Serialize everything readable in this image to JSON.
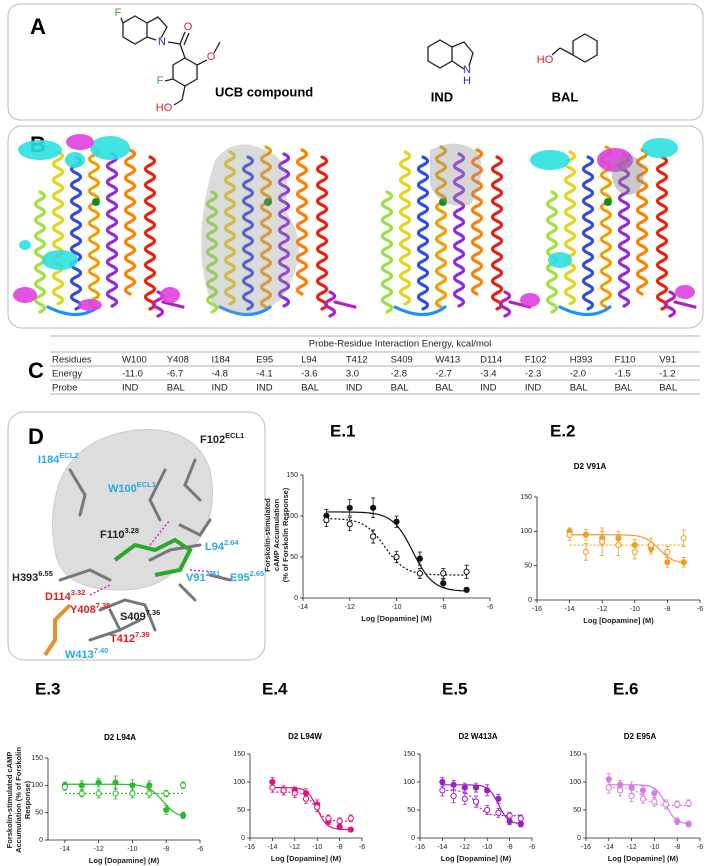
{
  "panel_a": {
    "label": "A",
    "molecules": [
      {
        "name": "UCB compound",
        "atoms": [
          "F",
          "N",
          "O",
          "O",
          "F",
          "HO"
        ]
      },
      {
        "name": "IND",
        "atoms": [
          "N",
          "H"
        ]
      },
      {
        "name": "BAL",
        "atoms": [
          "HO"
        ]
      }
    ]
  },
  "panel_b": {
    "label": "B"
  },
  "panel_c": {
    "label": "C",
    "table": {
      "title": "Probe-Residue Interaction Energy, kcal/mol",
      "rows": [
        [
          "Residues",
          "W100",
          "Y408",
          "I184",
          "E95",
          "L94",
          "T412",
          "S409",
          "W413",
          "D114",
          "F102",
          "H393",
          "F110",
          "V91"
        ],
        [
          "Energy",
          "-11.0",
          "-6.7",
          "-4.8",
          "-4.1",
          "-3.6",
          "3.0",
          "-2.8",
          "-2.7",
          "-3.4",
          "-2.3",
          "-2.0",
          "-1.5",
          "-1.2"
        ],
        [
          "Probe",
          "IND",
          "BAL",
          "IND",
          "IND",
          "BAL",
          "IND",
          "BAL",
          "BAL",
          "IND",
          "IND",
          "BAL",
          "BAL",
          "BAL"
        ]
      ]
    }
  },
  "panel_d": {
    "label": "D",
    "residues": [
      {
        "text": "I184",
        "sup": "ECL2",
        "color": "#29a8e0"
      },
      {
        "text": "W100",
        "sup": "ECL1",
        "color": "#29a8e0"
      },
      {
        "text": "F102",
        "sup": "ECL1",
        "color": "#222222"
      },
      {
        "text": "F110",
        "sup": "3.28",
        "color": "#222222"
      },
      {
        "text": "L94",
        "sup": "2.64",
        "color": "#29a8e0"
      },
      {
        "text": "H393",
        "sup": "6.55",
        "color": "#222222"
      },
      {
        "text": "V91",
        "sup": "2.61",
        "color": "#29a8e0"
      },
      {
        "text": "E95",
        "sup": "2.65",
        "color": "#29a8e0"
      },
      {
        "text": "D114",
        "sup": "3.32",
        "color": "#d62020"
      },
      {
        "text": "Y408",
        "sup": "7.35",
        "color": "#d62020"
      },
      {
        "text": "S409",
        "sup": "7.36",
        "color": "#222222"
      },
      {
        "text": "T412",
        "sup": "7.39",
        "color": "#d62020"
      },
      {
        "text": "W413",
        "sup": "7.40",
        "color": "#29a8e0"
      }
    ]
  },
  "chart_data": [
    {
      "type": "scatter",
      "title": "E.1",
      "x_label": "Log [Dopamine] (M)",
      "y_label": [
        "Forskolin-stimulated",
        "cAMP Accumulation",
        "(% of Forskolin Response)"
      ],
      "x": [
        -13,
        -12,
        -11,
        -10,
        -9,
        -8,
        -7
      ],
      "xlim": [
        -14,
        -6
      ],
      "ylim": [
        0,
        150
      ],
      "xticks": [
        -14,
        -12,
        -10,
        -8,
        -6
      ],
      "yticks": [
        0,
        50,
        100,
        150
      ],
      "series": [
        {
          "color": "#111111",
          "marker": "filled",
          "line_style": "solid",
          "values": [
            100,
            110,
            110,
            93,
            48,
            18,
            10
          ],
          "errors": [
            8,
            10,
            12,
            7,
            8,
            5,
            3
          ],
          "fit": {
            "top": 105,
            "bottom": 8,
            "log_ec50": -9.3
          }
        },
        {
          "color": "#111111",
          "marker": "open",
          "line_style": "dashed",
          "values": [
            95,
            90,
            75,
            50,
            30,
            30,
            32
          ],
          "errors": [
            8,
            8,
            8,
            7,
            6,
            6,
            8
          ],
          "fit": {
            "top": 97,
            "bottom": 28,
            "log_ec50": -10.5
          }
        }
      ]
    },
    {
      "type": "scatter",
      "title": "E.2",
      "subtitle": "D2 V91A",
      "x_label": "Log [Dopamine] (M)",
      "x": [
        -14,
        -13,
        -12,
        -11,
        -10,
        -9,
        -8,
        -7
      ],
      "xlim": [
        -16,
        -6
      ],
      "ylim": [
        0,
        150
      ],
      "xticks": [
        -16,
        -14,
        -12,
        -10,
        -8,
        -6
      ],
      "yticks": [
        0,
        50,
        100,
        150
      ],
      "series": [
        {
          "color": "#f39c1f",
          "marker": "filled",
          "line_style": "solid",
          "values": [
            100,
            95,
            90,
            90,
            80,
            75,
            55,
            55
          ],
          "errors": [
            5,
            8,
            10,
            10,
            8,
            8,
            7,
            7
          ],
          "fit": {
            "top": 95,
            "bottom": 53,
            "log_ec50": -8.5
          }
        },
        {
          "color": "#f39c1f",
          "marker": "open",
          "line_style": "dashed",
          "values": [
            95,
            70,
            85,
            80,
            70,
            80,
            70,
            90
          ],
          "errors": [
            8,
            12,
            20,
            15,
            10,
            10,
            8,
            12
          ],
          "fit": {
            "top": 80,
            "bottom": 80,
            "log_ec50": -10
          }
        }
      ]
    },
    {
      "type": "scatter",
      "title": "E.3",
      "subtitle": "D2 L94A",
      "x_label": "Log [Dopamine] (M)",
      "y_label": [
        "Forskolin-stimulated cAMP",
        "Accumulation (% of Forskolin",
        "Response)"
      ],
      "x": [
        -14,
        -13,
        -12,
        -11,
        -10,
        -9,
        -8,
        -7
      ],
      "xlim": [
        -15,
        -6
      ],
      "ylim": [
        0,
        150
      ],
      "xticks": [
        -14,
        -12,
        -10,
        -8,
        -6
      ],
      "yticks": [
        0,
        50,
        100,
        150
      ],
      "series": [
        {
          "color": "#2db82d",
          "marker": "filled",
          "line_style": "solid",
          "values": [
            100,
            100,
            105,
            105,
            100,
            100,
            55,
            45
          ],
          "errors": [
            6,
            8,
            8,
            12,
            10,
            8,
            8,
            6
          ],
          "fit": {
            "top": 102,
            "bottom": 40,
            "log_ec50": -8.2
          }
        },
        {
          "color": "#2db82d",
          "marker": "open",
          "line_style": "dashed",
          "values": [
            97,
            85,
            85,
            85,
            85,
            85,
            85,
            100
          ],
          "errors": [
            6,
            6,
            8,
            10,
            8,
            8,
            6,
            6
          ],
          "fit": {
            "top": 85,
            "bottom": 85,
            "log_ec50": -10
          }
        }
      ]
    },
    {
      "type": "scatter",
      "title": "E.4",
      "subtitle": "D2 L94W",
      "x_label": "Log [Dopamine] (M)",
      "x": [
        -14,
        -13,
        -12,
        -11,
        -10,
        -9,
        -8,
        -7
      ],
      "xlim": [
        -16,
        -6
      ],
      "ylim": [
        0,
        150
      ],
      "xticks": [
        -16,
        -14,
        -12,
        -10,
        -8,
        -6
      ],
      "yticks": [
        0,
        50,
        100,
        150
      ],
      "series": [
        {
          "color": "#e0157e",
          "marker": "filled",
          "line_style": "solid",
          "values": [
            100,
            85,
            85,
            80,
            60,
            30,
            20,
            15
          ],
          "errors": [
            8,
            8,
            6,
            8,
            8,
            6,
            5,
            4
          ],
          "fit": {
            "top": 90,
            "bottom": 15,
            "log_ec50": -10
          }
        },
        {
          "color": "#e0157e",
          "marker": "open",
          "line_style": "dashed",
          "values": [
            90,
            85,
            80,
            70,
            55,
            35,
            30,
            35
          ],
          "errors": [
            8,
            8,
            8,
            8,
            8,
            6,
            6,
            6
          ],
          "fit": {
            "top": 82,
            "bottom": 30,
            "log_ec50": -10.2
          }
        }
      ]
    },
    {
      "type": "scatter",
      "title": "E.5",
      "subtitle": "D2 W413A",
      "x_label": "Log [Dopamine] (M)",
      "x": [
        -14,
        -13,
        -12,
        -11,
        -10,
        -9,
        -8,
        -7
      ],
      "xlim": [
        -16,
        -6
      ],
      "ylim": [
        0,
        150
      ],
      "xticks": [
        -16,
        -14,
        -12,
        -10,
        -8,
        -6
      ],
      "yticks": [
        0,
        50,
        100,
        150
      ],
      "series": [
        {
          "color": "#9b1fc9",
          "marker": "filled",
          "line_style": "solid",
          "values": [
            100,
            95,
            90,
            90,
            85,
            70,
            30,
            25
          ],
          "errors": [
            8,
            8,
            8,
            8,
            10,
            8,
            6,
            5
          ],
          "fit": {
            "top": 95,
            "bottom": 25,
            "log_ec50": -9
          }
        },
        {
          "color": "#9b1fc9",
          "marker": "open",
          "line_style": "dashed",
          "values": [
            85,
            75,
            70,
            65,
            50,
            45,
            40,
            35
          ],
          "errors": [
            10,
            12,
            10,
            10,
            8,
            8,
            6,
            6
          ],
          "fit": {
            "top": 85,
            "bottom": 40,
            "log_ec50": -11
          }
        }
      ]
    },
    {
      "type": "scatter",
      "title": "E.6",
      "subtitle": "D2 E95A",
      "x_label": "Log [Dopamine] (M)",
      "x": [
        -14,
        -13,
        -12,
        -11,
        -10,
        -9,
        -8,
        -7
      ],
      "xlim": [
        -16,
        -6
      ],
      "ylim": [
        0,
        150
      ],
      "xticks": [
        -16,
        -14,
        -12,
        -10,
        -8,
        -6
      ],
      "yticks": [
        0,
        50,
        100,
        150
      ],
      "series": [
        {
          "color": "#d77be0",
          "marker": "filled",
          "line_style": "solid",
          "values": [
            105,
            95,
            90,
            85,
            80,
            60,
            30,
            25
          ],
          "errors": [
            10,
            8,
            10,
            8,
            8,
            8,
            6,
            5
          ],
          "fit": {
            "top": 95,
            "bottom": 25,
            "log_ec50": -9
          }
        },
        {
          "color": "#d77be0",
          "marker": "open",
          "line_style": "dashed",
          "values": [
            90,
            85,
            75,
            70,
            65,
            60,
            60,
            62
          ],
          "errors": [
            10,
            10,
            10,
            8,
            8,
            8,
            6,
            6
          ],
          "fit": {
            "top": 90,
            "bottom": 58,
            "log_ec50": -11
          }
        }
      ]
    }
  ]
}
